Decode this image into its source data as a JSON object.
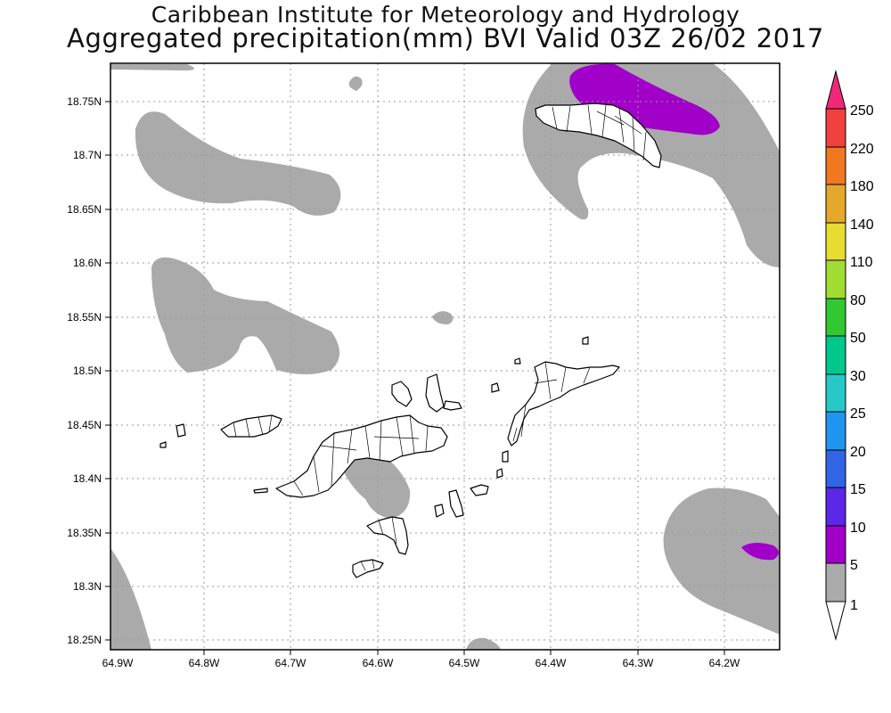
{
  "header": {
    "title_line1": "Caribbean Institute for Meteorology and Hydrology",
    "title_line2": "Aggregated precipitation(mm) BVI Valid 03Z 26/02 2017"
  },
  "map": {
    "lat_labels": [
      "18.75N",
      "18.7N",
      "18.65N",
      "18.6N",
      "18.55N",
      "18.5N",
      "18.45N",
      "18.4N",
      "18.35N",
      "18.3N",
      "18.25N"
    ],
    "lon_labels": [
      "64.9W",
      "64.8W",
      "64.7W",
      "64.6W",
      "64.5W",
      "64.4W",
      "64.3W",
      "64.2W"
    ],
    "colors": {
      "gray_1_5mm": "#aaaaaa",
      "purple_5_10mm": "#a000c8",
      "land_fill": "#ffffff",
      "coastline": "#000000"
    }
  },
  "colorbar": {
    "levels": [
      "250",
      "220",
      "180",
      "140",
      "110",
      "80",
      "50",
      "30",
      "25",
      "20",
      "15",
      "10",
      "5",
      "1"
    ],
    "colors": [
      "#f02878",
      "#f04040",
      "#f07820",
      "#e6a82c",
      "#e6dc32",
      "#a0dc32",
      "#32c832",
      "#00c88c",
      "#28c8c8",
      "#1e96f0",
      "#3264e6",
      "#5a28e6",
      "#a000c8",
      "#aaaaaa",
      "#ffffff"
    ]
  }
}
